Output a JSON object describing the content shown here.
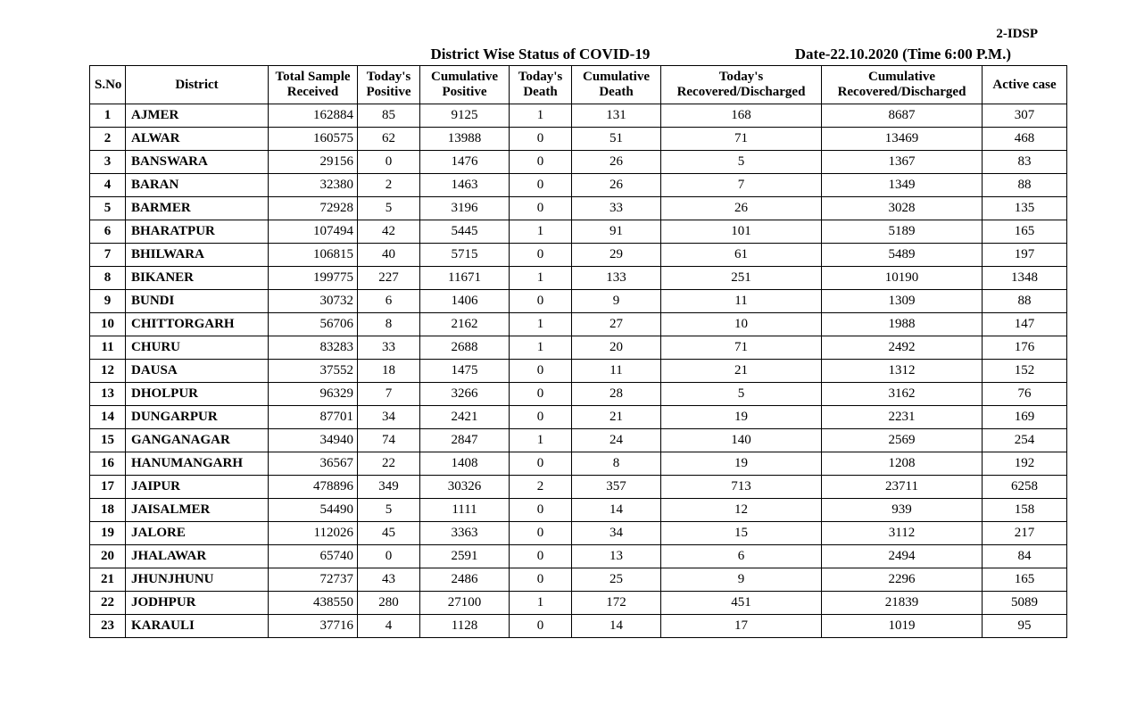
{
  "top_label": "2-IDSP",
  "title": "District Wise Status of  COVID-19",
  "date_label": "Date-22.10.2020 (Time 6:00 P.M.)",
  "columns": {
    "sno": "S.No",
    "district": "District",
    "sample": "Total Sample Received",
    "tpos": "Today's Positive",
    "cpos": "Cumulative Positive",
    "tdeath": "Today's Death",
    "cdeath": "Cumulative Death",
    "trec": "Today's Recovered/Discharged",
    "crec": "Cumulative Recovered/Discharged",
    "active": "Active case"
  },
  "rows": [
    {
      "sno": "1",
      "district": "AJMER",
      "sample": "162884",
      "tpos": "85",
      "cpos": "9125",
      "tdeath": "1",
      "cdeath": "131",
      "trec": "168",
      "crec": "8687",
      "active": "307"
    },
    {
      "sno": "2",
      "district": "ALWAR",
      "sample": "160575",
      "tpos": "62",
      "cpos": "13988",
      "tdeath": "0",
      "cdeath": "51",
      "trec": "71",
      "crec": "13469",
      "active": "468"
    },
    {
      "sno": "3",
      "district": "BANSWARA",
      "sample": "29156",
      "tpos": "0",
      "cpos": "1476",
      "tdeath": "0",
      "cdeath": "26",
      "trec": "5",
      "crec": "1367",
      "active": "83"
    },
    {
      "sno": "4",
      "district": "BARAN",
      "sample": "32380",
      "tpos": "2",
      "cpos": "1463",
      "tdeath": "0",
      "cdeath": "26",
      "trec": "7",
      "crec": "1349",
      "active": "88"
    },
    {
      "sno": "5",
      "district": "BARMER",
      "sample": "72928",
      "tpos": "5",
      "cpos": "3196",
      "tdeath": "0",
      "cdeath": "33",
      "trec": "26",
      "crec": "3028",
      "active": "135"
    },
    {
      "sno": "6",
      "district": "BHARATPUR",
      "sample": "107494",
      "tpos": "42",
      "cpos": "5445",
      "tdeath": "1",
      "cdeath": "91",
      "trec": "101",
      "crec": "5189",
      "active": "165"
    },
    {
      "sno": "7",
      "district": "BHILWARA",
      "sample": "106815",
      "tpos": "40",
      "cpos": "5715",
      "tdeath": "0",
      "cdeath": "29",
      "trec": "61",
      "crec": "5489",
      "active": "197"
    },
    {
      "sno": "8",
      "district": "BIKANER",
      "sample": "199775",
      "tpos": "227",
      "cpos": "11671",
      "tdeath": "1",
      "cdeath": "133",
      "trec": "251",
      "crec": "10190",
      "active": "1348"
    },
    {
      "sno": "9",
      "district": "BUNDI",
      "sample": "30732",
      "tpos": "6",
      "cpos": "1406",
      "tdeath": "0",
      "cdeath": "9",
      "trec": "11",
      "crec": "1309",
      "active": "88"
    },
    {
      "sno": "10",
      "district": "CHITTORGARH",
      "sample": "56706",
      "tpos": "8",
      "cpos": "2162",
      "tdeath": "1",
      "cdeath": "27",
      "trec": "10",
      "crec": "1988",
      "active": "147"
    },
    {
      "sno": "11",
      "district": "CHURU",
      "sample": "83283",
      "tpos": "33",
      "cpos": "2688",
      "tdeath": "1",
      "cdeath": "20",
      "trec": "71",
      "crec": "2492",
      "active": "176"
    },
    {
      "sno": "12",
      "district": "DAUSA",
      "sample": "37552",
      "tpos": "18",
      "cpos": "1475",
      "tdeath": "0",
      "cdeath": "11",
      "trec": "21",
      "crec": "1312",
      "active": "152"
    },
    {
      "sno": "13",
      "district": "DHOLPUR",
      "sample": "96329",
      "tpos": "7",
      "cpos": "3266",
      "tdeath": "0",
      "cdeath": "28",
      "trec": "5",
      "crec": "3162",
      "active": "76"
    },
    {
      "sno": "14",
      "district": "DUNGARPUR",
      "sample": "87701",
      "tpos": "34",
      "cpos": "2421",
      "tdeath": "0",
      "cdeath": "21",
      "trec": "19",
      "crec": "2231",
      "active": "169"
    },
    {
      "sno": "15",
      "district": "GANGANAGAR",
      "sample": "34940",
      "tpos": "74",
      "cpos": "2847",
      "tdeath": "1",
      "cdeath": "24",
      "trec": "140",
      "crec": "2569",
      "active": "254"
    },
    {
      "sno": "16",
      "district": "HANUMANGARH",
      "sample": "36567",
      "tpos": "22",
      "cpos": "1408",
      "tdeath": "0",
      "cdeath": "8",
      "trec": "19",
      "crec": "1208",
      "active": "192"
    },
    {
      "sno": "17",
      "district": "JAIPUR",
      "sample": "478896",
      "tpos": "349",
      "cpos": "30326",
      "tdeath": "2",
      "cdeath": "357",
      "trec": "713",
      "crec": "23711",
      "active": "6258"
    },
    {
      "sno": "18",
      "district": "JAISALMER",
      "sample": "54490",
      "tpos": "5",
      "cpos": "1111",
      "tdeath": "0",
      "cdeath": "14",
      "trec": "12",
      "crec": "939",
      "active": "158"
    },
    {
      "sno": "19",
      "district": "JALORE",
      "sample": "112026",
      "tpos": "45",
      "cpos": "3363",
      "tdeath": "0",
      "cdeath": "34",
      "trec": "15",
      "crec": "3112",
      "active": "217"
    },
    {
      "sno": "20",
      "district": "JHALAWAR",
      "sample": "65740",
      "tpos": "0",
      "cpos": "2591",
      "tdeath": "0",
      "cdeath": "13",
      "trec": "6",
      "crec": "2494",
      "active": "84"
    },
    {
      "sno": "21",
      "district": "JHUNJHUNU",
      "sample": "72737",
      "tpos": "43",
      "cpos": "2486",
      "tdeath": "0",
      "cdeath": "25",
      "trec": "9",
      "crec": "2296",
      "active": "165"
    },
    {
      "sno": "22",
      "district": "JODHPUR",
      "sample": "438550",
      "tpos": "280",
      "cpos": "27100",
      "tdeath": "1",
      "cdeath": "172",
      "trec": "451",
      "crec": "21839",
      "active": "5089"
    },
    {
      "sno": "23",
      "district": "KARAULI",
      "sample": "37716",
      "tpos": "4",
      "cpos": "1128",
      "tdeath": "0",
      "cdeath": "14",
      "trec": "17",
      "crec": "1019",
      "active": "95"
    }
  ]
}
